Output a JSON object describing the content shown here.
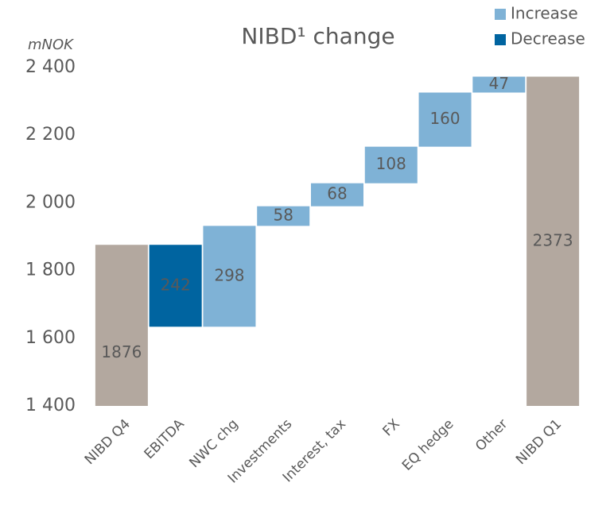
{
  "chart_data": {
    "type": "waterfall",
    "title": "NIBD¹ change",
    "y_label": "mNOK",
    "categories": [
      "NIBD Q4",
      "EBITDA",
      "NWC chg",
      "Investments",
      "Interest, tax",
      "FX",
      "EQ hedge",
      "Other",
      "NIBD Q1"
    ],
    "values": [
      1876,
      -242,
      298,
      58,
      68,
      108,
      160,
      47,
      2373
    ],
    "value_labels": [
      "1876",
      "242",
      "298",
      "58",
      "68",
      "108",
      "160",
      "47",
      "2373"
    ],
    "legend": [
      {
        "name": "Increase",
        "color": "#7fb2d6"
      },
      {
        "name": "Decrease",
        "color": "#0064a0"
      }
    ],
    "total_color": "#b3a89f",
    "ylim": [
      1400,
      2400
    ],
    "yticks": [
      {
        "value": 1400,
        "label": "1 400"
      },
      {
        "value": 1600,
        "label": "1 600"
      },
      {
        "value": 1800,
        "label": "1 800"
      },
      {
        "value": 2000,
        "label": "2 000"
      },
      {
        "value": 2200,
        "label": "2 200"
      },
      {
        "value": 2400,
        "label": "2 400"
      }
    ],
    "legend_position": "upper right"
  }
}
